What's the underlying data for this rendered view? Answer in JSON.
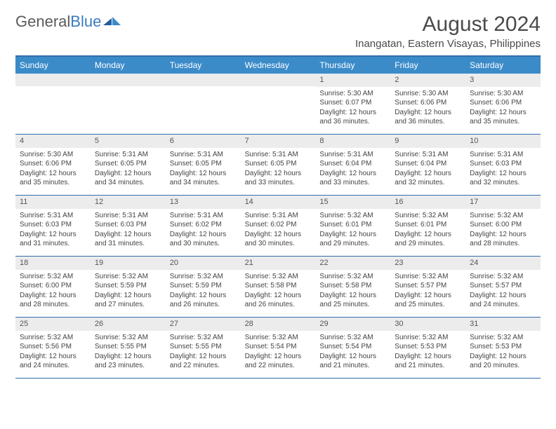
{
  "logo": {
    "word1": "General",
    "word2": "Blue"
  },
  "title": "August 2024",
  "subtitle": "Inangatan, Eastern Visayas, Philippines",
  "colors": {
    "header_bg": "#3b8bc9",
    "border": "#2f6fa8",
    "daynum_bg": "#ececec",
    "text": "#444444",
    "title": "#4a4a4a"
  },
  "weekdays": [
    "Sunday",
    "Monday",
    "Tuesday",
    "Wednesday",
    "Thursday",
    "Friday",
    "Saturday"
  ],
  "weeks": [
    [
      {
        "day": "",
        "sunrise": "",
        "sunset": "",
        "daylight": ""
      },
      {
        "day": "",
        "sunrise": "",
        "sunset": "",
        "daylight": ""
      },
      {
        "day": "",
        "sunrise": "",
        "sunset": "",
        "daylight": ""
      },
      {
        "day": "",
        "sunrise": "",
        "sunset": "",
        "daylight": ""
      },
      {
        "day": "1",
        "sunrise": "Sunrise: 5:30 AM",
        "sunset": "Sunset: 6:07 PM",
        "daylight": "Daylight: 12 hours and 36 minutes."
      },
      {
        "day": "2",
        "sunrise": "Sunrise: 5:30 AM",
        "sunset": "Sunset: 6:06 PM",
        "daylight": "Daylight: 12 hours and 36 minutes."
      },
      {
        "day": "3",
        "sunrise": "Sunrise: 5:30 AM",
        "sunset": "Sunset: 6:06 PM",
        "daylight": "Daylight: 12 hours and 35 minutes."
      }
    ],
    [
      {
        "day": "4",
        "sunrise": "Sunrise: 5:30 AM",
        "sunset": "Sunset: 6:06 PM",
        "daylight": "Daylight: 12 hours and 35 minutes."
      },
      {
        "day": "5",
        "sunrise": "Sunrise: 5:31 AM",
        "sunset": "Sunset: 6:05 PM",
        "daylight": "Daylight: 12 hours and 34 minutes."
      },
      {
        "day": "6",
        "sunrise": "Sunrise: 5:31 AM",
        "sunset": "Sunset: 6:05 PM",
        "daylight": "Daylight: 12 hours and 34 minutes."
      },
      {
        "day": "7",
        "sunrise": "Sunrise: 5:31 AM",
        "sunset": "Sunset: 6:05 PM",
        "daylight": "Daylight: 12 hours and 33 minutes."
      },
      {
        "day": "8",
        "sunrise": "Sunrise: 5:31 AM",
        "sunset": "Sunset: 6:04 PM",
        "daylight": "Daylight: 12 hours and 33 minutes."
      },
      {
        "day": "9",
        "sunrise": "Sunrise: 5:31 AM",
        "sunset": "Sunset: 6:04 PM",
        "daylight": "Daylight: 12 hours and 32 minutes."
      },
      {
        "day": "10",
        "sunrise": "Sunrise: 5:31 AM",
        "sunset": "Sunset: 6:03 PM",
        "daylight": "Daylight: 12 hours and 32 minutes."
      }
    ],
    [
      {
        "day": "11",
        "sunrise": "Sunrise: 5:31 AM",
        "sunset": "Sunset: 6:03 PM",
        "daylight": "Daylight: 12 hours and 31 minutes."
      },
      {
        "day": "12",
        "sunrise": "Sunrise: 5:31 AM",
        "sunset": "Sunset: 6:03 PM",
        "daylight": "Daylight: 12 hours and 31 minutes."
      },
      {
        "day": "13",
        "sunrise": "Sunrise: 5:31 AM",
        "sunset": "Sunset: 6:02 PM",
        "daylight": "Daylight: 12 hours and 30 minutes."
      },
      {
        "day": "14",
        "sunrise": "Sunrise: 5:31 AM",
        "sunset": "Sunset: 6:02 PM",
        "daylight": "Daylight: 12 hours and 30 minutes."
      },
      {
        "day": "15",
        "sunrise": "Sunrise: 5:32 AM",
        "sunset": "Sunset: 6:01 PM",
        "daylight": "Daylight: 12 hours and 29 minutes."
      },
      {
        "day": "16",
        "sunrise": "Sunrise: 5:32 AM",
        "sunset": "Sunset: 6:01 PM",
        "daylight": "Daylight: 12 hours and 29 minutes."
      },
      {
        "day": "17",
        "sunrise": "Sunrise: 5:32 AM",
        "sunset": "Sunset: 6:00 PM",
        "daylight": "Daylight: 12 hours and 28 minutes."
      }
    ],
    [
      {
        "day": "18",
        "sunrise": "Sunrise: 5:32 AM",
        "sunset": "Sunset: 6:00 PM",
        "daylight": "Daylight: 12 hours and 28 minutes."
      },
      {
        "day": "19",
        "sunrise": "Sunrise: 5:32 AM",
        "sunset": "Sunset: 5:59 PM",
        "daylight": "Daylight: 12 hours and 27 minutes."
      },
      {
        "day": "20",
        "sunrise": "Sunrise: 5:32 AM",
        "sunset": "Sunset: 5:59 PM",
        "daylight": "Daylight: 12 hours and 26 minutes."
      },
      {
        "day": "21",
        "sunrise": "Sunrise: 5:32 AM",
        "sunset": "Sunset: 5:58 PM",
        "daylight": "Daylight: 12 hours and 26 minutes."
      },
      {
        "day": "22",
        "sunrise": "Sunrise: 5:32 AM",
        "sunset": "Sunset: 5:58 PM",
        "daylight": "Daylight: 12 hours and 25 minutes."
      },
      {
        "day": "23",
        "sunrise": "Sunrise: 5:32 AM",
        "sunset": "Sunset: 5:57 PM",
        "daylight": "Daylight: 12 hours and 25 minutes."
      },
      {
        "day": "24",
        "sunrise": "Sunrise: 5:32 AM",
        "sunset": "Sunset: 5:57 PM",
        "daylight": "Daylight: 12 hours and 24 minutes."
      }
    ],
    [
      {
        "day": "25",
        "sunrise": "Sunrise: 5:32 AM",
        "sunset": "Sunset: 5:56 PM",
        "daylight": "Daylight: 12 hours and 24 minutes."
      },
      {
        "day": "26",
        "sunrise": "Sunrise: 5:32 AM",
        "sunset": "Sunset: 5:55 PM",
        "daylight": "Daylight: 12 hours and 23 minutes."
      },
      {
        "day": "27",
        "sunrise": "Sunrise: 5:32 AM",
        "sunset": "Sunset: 5:55 PM",
        "daylight": "Daylight: 12 hours and 22 minutes."
      },
      {
        "day": "28",
        "sunrise": "Sunrise: 5:32 AM",
        "sunset": "Sunset: 5:54 PM",
        "daylight": "Daylight: 12 hours and 22 minutes."
      },
      {
        "day": "29",
        "sunrise": "Sunrise: 5:32 AM",
        "sunset": "Sunset: 5:54 PM",
        "daylight": "Daylight: 12 hours and 21 minutes."
      },
      {
        "day": "30",
        "sunrise": "Sunrise: 5:32 AM",
        "sunset": "Sunset: 5:53 PM",
        "daylight": "Daylight: 12 hours and 21 minutes."
      },
      {
        "day": "31",
        "sunrise": "Sunrise: 5:32 AM",
        "sunset": "Sunset: 5:53 PM",
        "daylight": "Daylight: 12 hours and 20 minutes."
      }
    ]
  ]
}
